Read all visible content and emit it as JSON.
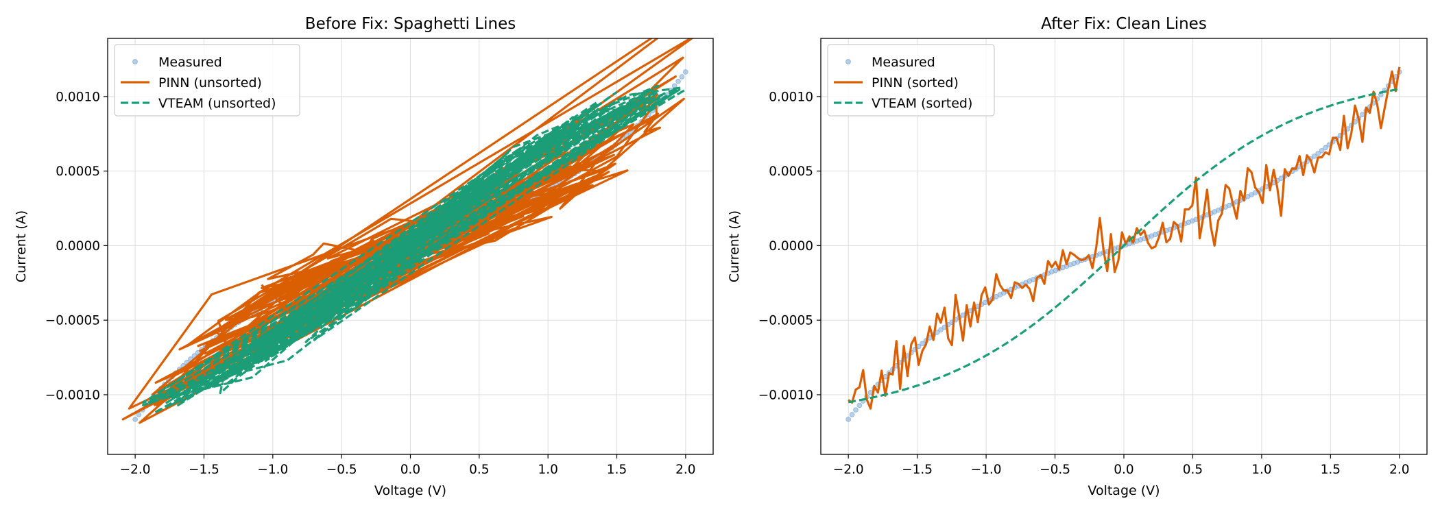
{
  "chart_data": [
    {
      "type": "line",
      "title": "Before Fix: Spaghetti Lines",
      "xlabel": "Voltage (V)",
      "ylabel": "Current (A)",
      "xlim": [
        -2.2,
        2.2
      ],
      "ylim": [
        -0.0014,
        0.00139
      ],
      "xticks": [
        "−2.0",
        "−1.5",
        "−1.0",
        "−0.5",
        "0.0",
        "0.5",
        "1.0",
        "1.5",
        "2.0"
      ],
      "yticks": [
        "−0.0010",
        "−0.0005",
        "0.0000",
        "0.0005",
        "0.0010"
      ],
      "grid": true,
      "legend_loc": "upper-left",
      "legend": [
        "Measured",
        "PINN (unsorted)",
        "VTEAM (unsorted)"
      ],
      "series": [
        {
          "name": "Measured",
          "style": "scatter",
          "color": "#7ba7d6"
        },
        {
          "name": "PINN (unsorted)",
          "style": "solid",
          "color": "#d95f02",
          "order": "unsorted"
        },
        {
          "name": "VTEAM (unsorted)",
          "style": "dashed",
          "color": "#1b9e77",
          "order": "unsorted"
        }
      ]
    },
    {
      "type": "line",
      "title": "After Fix: Clean Lines",
      "xlabel": "Voltage (V)",
      "ylabel": "Current (A)",
      "xlim": [
        -2.2,
        2.2
      ],
      "ylim": [
        -0.0014,
        0.00139
      ],
      "xticks": [
        "−2.0",
        "−1.5",
        "−1.0",
        "−0.5",
        "0.0",
        "0.5",
        "1.0",
        "1.5",
        "2.0"
      ],
      "yticks": [
        "−0.0010",
        "−0.0005",
        "0.0000",
        "0.0005",
        "0.0010"
      ],
      "grid": true,
      "legend_loc": "upper-left",
      "legend": [
        "Measured",
        "PINN (sorted)",
        "VTEAM (sorted)"
      ],
      "series": [
        {
          "name": "Measured",
          "style": "scatter",
          "color": "#7ba7d6"
        },
        {
          "name": "PINN (sorted)",
          "style": "solid",
          "color": "#d95f02",
          "order": "sorted"
        },
        {
          "name": "VTEAM (sorted)",
          "style": "dashed",
          "color": "#1b9e77",
          "order": "sorted"
        }
      ]
    }
  ],
  "curves": {
    "voltage_range": [
      -2.0,
      2.0
    ],
    "point_count": 150,
    "measured": {
      "current_at_min_v": -0.001165,
      "current_at_max_v": 0.001165
    },
    "vteam": {
      "current_at_min_v": -0.00105,
      "current_at_max_v": 0.00105
    }
  }
}
